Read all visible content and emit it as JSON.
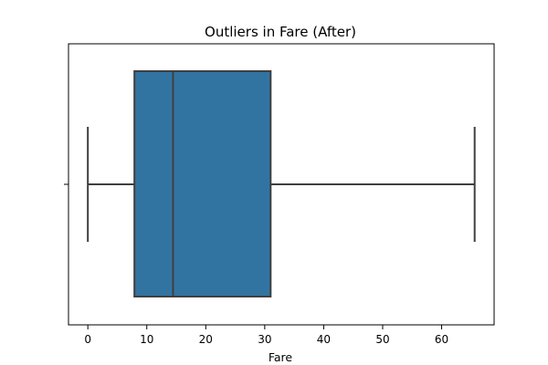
{
  "chart_data": {
    "type": "boxplot",
    "title": "Outliers in Fare (After)",
    "xlabel": "Fare",
    "ylabel": "",
    "orientation": "horizontal",
    "xlim": [
      -3.28,
      68.9
    ],
    "xticks": [
      0,
      10,
      20,
      30,
      40,
      50,
      60
    ],
    "xtick_labels": [
      "0",
      "10",
      "20",
      "30",
      "40",
      "50",
      "60"
    ],
    "grid": false,
    "series": [
      {
        "whisker_low": 0,
        "q1": 7.9,
        "median": 14.45,
        "q3": 31.0,
        "whisker_high": 65.6
      }
    ],
    "colors": {
      "box_fill": "#3274a1",
      "line": "#3f3f3f",
      "axes": "#000000"
    }
  }
}
